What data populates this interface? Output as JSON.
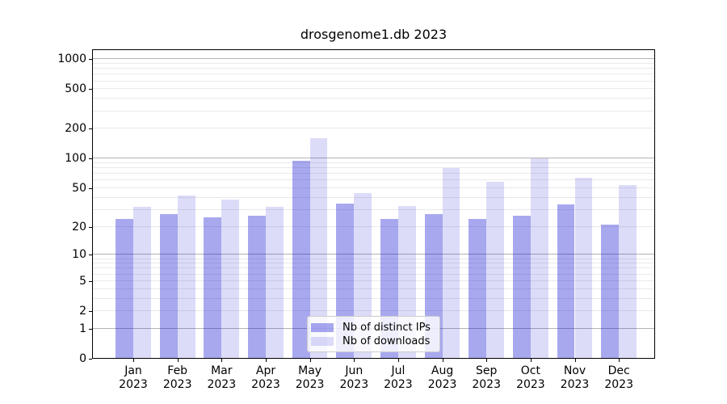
{
  "chart_data": {
    "type": "bar",
    "title": "drosgenome1.db 2023",
    "categories": [
      "Jan",
      "Feb",
      "Mar",
      "Apr",
      "May",
      "Jun",
      "Jul",
      "Aug",
      "Sep",
      "Oct",
      "Nov",
      "Dec"
    ],
    "category_year": "2023",
    "series": [
      {
        "name": "Nb of distinct IPs",
        "color": "#a8a8ef",
        "rgba": "rgba(13,13,211,0.36)",
        "values": [
          24,
          27,
          25,
          26,
          95,
          35,
          24,
          27,
          24,
          26,
          34,
          21
        ]
      },
      {
        "name": "Nb of downloads",
        "color": "#dcdcf8",
        "rgba": "rgba(5,5,205,0.14)",
        "values": [
          32,
          42,
          38,
          32,
          160,
          45,
          33,
          80,
          58,
          101,
          64,
          54
        ]
      }
    ],
    "yscale": "log1p",
    "ylim": [
      0,
      1000
    ],
    "ytick_values": [
      1000,
      500,
      200,
      100,
      50,
      20,
      10,
      5,
      2,
      1,
      0
    ],
    "ytick_labels": [
      "1000",
      "500",
      "200",
      "100",
      "50",
      "20",
      "10",
      "5",
      "2",
      "1",
      "0"
    ],
    "grid_major_values": [
      1,
      10,
      100,
      1000
    ],
    "legend_position": "lower-center-inside",
    "colors": {
      "major_grid": "#b3b3b3",
      "minor_grid": "#e9e9e9",
      "spine": "#000000",
      "text": "#000000",
      "legend_border": "#cccccc",
      "background": "#ffffff"
    }
  }
}
